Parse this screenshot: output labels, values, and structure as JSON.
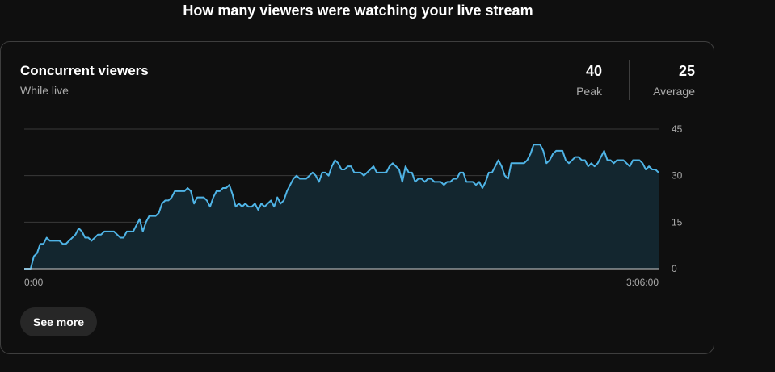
{
  "page": {
    "heading": "How many viewers were watching your live stream"
  },
  "card": {
    "title": "Concurrent viewers",
    "subtitle": "While live",
    "stats": {
      "peak": {
        "value": "40",
        "label": "Peak"
      },
      "average": {
        "value": "25",
        "label": "Average"
      }
    },
    "see_more_label": "See more"
  },
  "colors": {
    "line": "#4fb4e6",
    "fill": "#13262f",
    "grid": "#3a3a3a",
    "baseline": "#cccccc"
  },
  "chart_data": {
    "type": "area",
    "title": "Concurrent viewers",
    "xlabel": "",
    "ylabel": "",
    "x_tick_labels": [
      "0:00",
      "3:06:00"
    ],
    "y_ticks": [
      0,
      15,
      30,
      45
    ],
    "ylim": [
      0,
      45
    ],
    "xlim_minutes": [
      0,
      186
    ],
    "grid": true,
    "legend": "none",
    "series": [
      {
        "values": [
          0,
          0,
          0,
          4,
          5,
          8,
          8,
          10,
          9,
          9,
          9,
          9,
          8,
          8,
          9,
          10,
          11,
          13,
          12,
          10,
          10,
          9,
          10,
          11,
          11,
          12,
          12,
          12,
          12,
          11,
          10,
          10,
          12,
          12,
          12,
          14,
          16,
          12,
          15,
          17,
          17,
          17,
          18,
          21,
          22,
          22,
          23,
          25,
          25,
          25,
          25,
          26,
          25,
          21,
          23,
          23,
          23,
          22,
          20,
          23,
          25,
          25,
          26,
          26,
          27,
          24,
          20,
          21,
          20,
          21,
          20,
          20,
          21,
          19,
          21,
          20,
          21,
          22,
          20,
          23,
          21,
          22,
          25,
          27,
          29,
          30,
          29,
          29,
          29,
          30,
          31,
          30,
          28,
          31,
          31,
          30,
          33,
          35,
          34,
          32,
          32,
          33,
          33,
          31,
          31,
          31,
          30,
          31,
          32,
          33,
          31,
          31,
          31,
          31,
          33,
          34,
          33,
          32,
          28,
          33,
          31,
          31,
          28,
          29,
          29,
          28,
          29,
          29,
          28,
          28,
          28,
          27,
          28,
          28,
          29,
          29,
          31,
          31,
          28,
          28,
          28,
          27,
          28,
          26,
          28,
          31,
          31,
          33,
          35,
          33,
          30,
          29,
          34,
          34,
          34,
          34,
          34,
          35,
          37,
          40,
          40,
          40,
          38,
          34,
          35,
          37,
          38,
          38,
          38,
          35,
          34,
          35,
          36,
          36,
          35,
          35,
          33,
          34,
          33,
          34,
          36,
          38,
          35,
          35,
          34,
          35,
          35,
          35,
          34,
          33,
          35,
          35,
          35,
          34,
          32,
          33,
          32,
          32,
          31
        ]
      }
    ]
  }
}
